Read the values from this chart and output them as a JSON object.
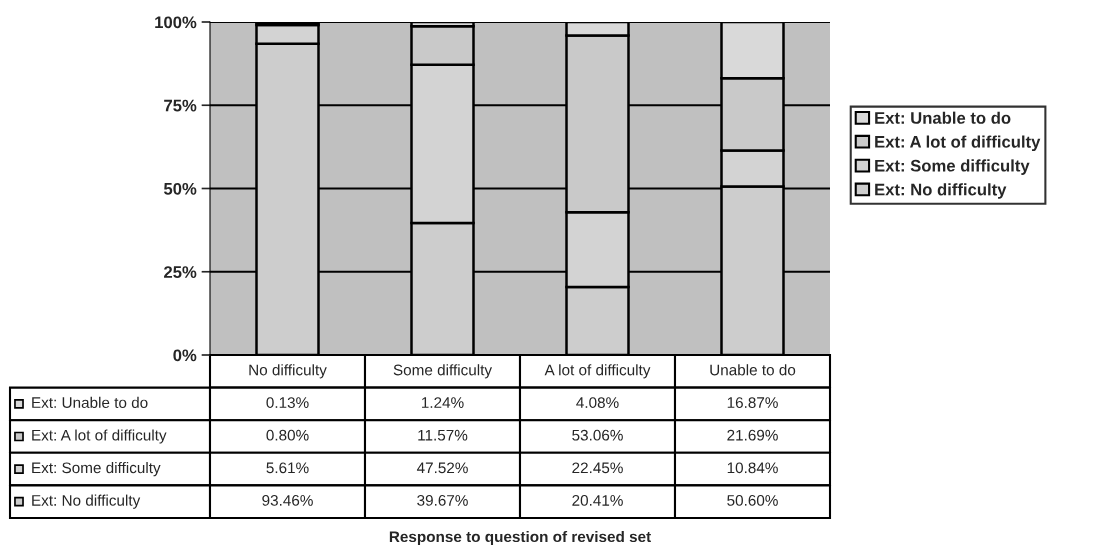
{
  "chart_data": {
    "type": "bar",
    "stacked": true,
    "annotations": [
      "Response to question of revised set"
    ],
    "categories": [
      "No difficulty",
      "Some difficulty",
      "A lot of difficulty",
      "Unable to do"
    ],
    "series": [
      {
        "name": "Ext: No difficulty",
        "color": "#cdcdcd",
        "values": [
          93.46,
          39.67,
          20.41,
          50.6
        ],
        "value_labels": [
          "93.46%",
          "39.67%",
          "20.41%",
          "50.60%"
        ]
      },
      {
        "name": "Ext: Some difficulty",
        "color": "#d3d3d3",
        "values": [
          5.61,
          47.52,
          22.45,
          10.84
        ],
        "value_labels": [
          "5.61%",
          "47.52%",
          "22.45%",
          "10.84%"
        ]
      },
      {
        "name": "Ext: A lot of difficulty",
        "color": "#c9c9c9",
        "values": [
          0.8,
          11.57,
          53.06,
          21.69
        ],
        "value_labels": [
          "0.80%",
          "11.57%",
          "53.06%",
          "21.69%"
        ]
      },
      {
        "name": "Ext: Unable to do",
        "color": "#d9d9d9",
        "values": [
          0.13,
          1.24,
          4.08,
          16.87
        ],
        "value_labels": [
          "0.13%",
          "1.24%",
          "4.08%",
          "16.87%"
        ]
      }
    ],
    "ylim": [
      0,
      100
    ],
    "yticks": [
      {
        "value": 0,
        "label": "0%"
      },
      {
        "value": 25,
        "label": "25%"
      },
      {
        "value": 50,
        "label": "50%"
      },
      {
        "value": 75,
        "label": "75%"
      },
      {
        "value": 100,
        "label": "100%"
      }
    ],
    "grid": "y",
    "legend": "right",
    "tick_labels": "y"
  }
}
